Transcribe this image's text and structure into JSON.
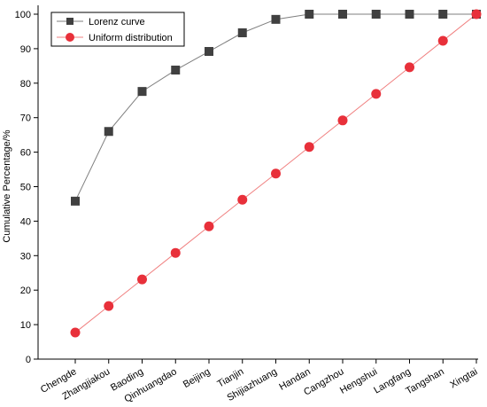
{
  "chart_data": {
    "type": "line",
    "title": "",
    "xlabel": "",
    "ylabel": "Cumulative Percentage/%",
    "categories": [
      "Chengde",
      "Zhangjiakou",
      "Baoding",
      "Qinhuangdao",
      "Beijing",
      "Tianjin",
      "Shijiazhuang",
      "Handan",
      "Cangzhou",
      "Hengshui",
      "Langfang",
      "Tangshan",
      "Xingtai"
    ],
    "ylim": [
      0,
      100
    ],
    "yticks": [
      0,
      10,
      20,
      30,
      40,
      50,
      60,
      70,
      80,
      90,
      100
    ],
    "grid": false,
    "legend_position": "top-left",
    "series": [
      {
        "name": "Lorenz curve",
        "marker": "square",
        "color": "#404040",
        "line_color": "#7f7f7f",
        "values": [
          45.8,
          66.0,
          77.6,
          83.8,
          89.2,
          94.6,
          98.5,
          100,
          100,
          100,
          100,
          100,
          100
        ]
      },
      {
        "name": "Uniform distribution",
        "marker": "circle",
        "color": "#e8303a",
        "line_color": "#f08080",
        "values": [
          7.7,
          15.4,
          23.1,
          30.8,
          38.5,
          46.2,
          53.8,
          61.5,
          69.2,
          76.9,
          84.6,
          92.3,
          100
        ]
      }
    ]
  }
}
